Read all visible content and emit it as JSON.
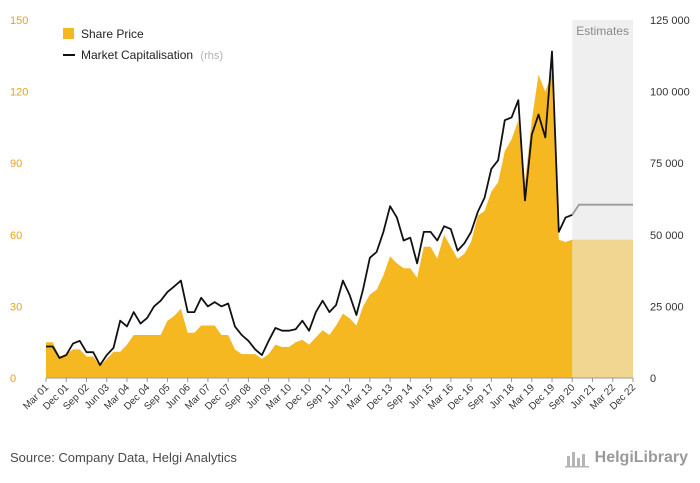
{
  "chart_data": {
    "type": "area",
    "legend": {
      "share_price": "Share Price",
      "market_cap": "Market Capitalisation",
      "market_cap_note": "(rhs)",
      "placement": "top-left"
    },
    "estimates_label": "Estimates",
    "colors": {
      "share_price": "#f5b820",
      "market_cap": "#111111",
      "estimate_line": "#9a9a9a",
      "estimate_band": "#efefef"
    },
    "y_left": {
      "min": 0,
      "max": 150,
      "ticks": [
        "0",
        "30",
        "60",
        "90",
        "120",
        "150"
      ]
    },
    "y_right": {
      "min": 0,
      "max": 125000,
      "ticks": [
        "0",
        "25 000",
        "50 000",
        "75 000",
        "100 000",
        "125 000"
      ]
    },
    "x_ticks": [
      "Mar 01",
      "Dec 01",
      "Sep 02",
      "Jun 03",
      "Mar 04",
      "Dec 04",
      "Sep 05",
      "Jun 06",
      "Mar 07",
      "Dec 07",
      "Sep 08",
      "Jun 09",
      "Mar 10",
      "Dec 10",
      "Sep 11",
      "Jun 12",
      "Mar 13",
      "Dec 13",
      "Sep 14",
      "Jun 15",
      "Mar 16",
      "Dec 16",
      "Sep 17",
      "Jun 18",
      "Mar 19",
      "Dec 19",
      "Sep 20",
      "Jun 21",
      "Mar 22",
      "Dec 22"
    ],
    "x_range_quarters": [
      0,
      87
    ],
    "estimates_from_quarter": 78,
    "series": [
      {
        "name": "Share Price",
        "axis": "left",
        "points": [
          [
            0,
            15
          ],
          [
            1,
            15
          ],
          [
            2,
            9
          ],
          [
            3,
            10
          ],
          [
            4,
            12
          ],
          [
            5,
            12
          ],
          [
            6,
            9
          ],
          [
            7,
            9
          ],
          [
            8,
            5
          ],
          [
            9,
            8
          ],
          [
            10,
            11
          ],
          [
            11,
            11
          ],
          [
            12,
            14
          ],
          [
            13,
            18
          ],
          [
            14,
            18
          ],
          [
            15,
            18
          ],
          [
            16,
            18
          ],
          [
            17,
            18
          ],
          [
            18,
            24
          ],
          [
            19,
            26
          ],
          [
            20,
            29
          ],
          [
            21,
            19
          ],
          [
            22,
            19
          ],
          [
            23,
            22
          ],
          [
            24,
            22
          ],
          [
            25,
            22
          ],
          [
            26,
            18
          ],
          [
            27,
            18
          ],
          [
            28,
            12
          ],
          [
            29,
            10
          ],
          [
            30,
            10
          ],
          [
            31,
            10
          ],
          [
            32,
            8
          ],
          [
            33,
            10
          ],
          [
            34,
            14
          ],
          [
            35,
            13
          ],
          [
            36,
            13
          ],
          [
            37,
            15
          ],
          [
            38,
            16
          ],
          [
            39,
            14
          ],
          [
            40,
            17
          ],
          [
            41,
            20
          ],
          [
            42,
            18
          ],
          [
            43,
            22
          ],
          [
            44,
            27
          ],
          [
            45,
            25
          ],
          [
            46,
            22
          ],
          [
            47,
            30
          ],
          [
            48,
            35
          ],
          [
            49,
            37
          ],
          [
            50,
            43
          ],
          [
            51,
            51
          ],
          [
            52,
            48
          ],
          [
            53,
            46
          ],
          [
            54,
            46
          ],
          [
            55,
            42
          ],
          [
            56,
            55
          ],
          [
            57,
            55
          ],
          [
            58,
            50
          ],
          [
            59,
            60
          ],
          [
            60,
            55
          ],
          [
            61,
            50
          ],
          [
            62,
            52
          ],
          [
            63,
            57
          ],
          [
            64,
            68
          ],
          [
            65,
            70
          ],
          [
            66,
            78
          ],
          [
            67,
            82
          ],
          [
            68,
            95
          ],
          [
            69,
            100
          ],
          [
            70,
            108
          ],
          [
            71,
            82
          ],
          [
            72,
            108
          ],
          [
            73,
            127
          ],
          [
            74,
            120
          ],
          [
            75,
            128
          ],
          [
            76,
            58
          ],
          [
            77,
            57
          ],
          [
            78,
            58
          ],
          [
            79,
            58
          ],
          [
            80,
            58
          ],
          [
            81,
            58
          ],
          [
            82,
            58
          ],
          [
            83,
            58
          ],
          [
            84,
            58
          ],
          [
            85,
            58
          ],
          [
            86,
            58
          ],
          [
            87,
            58
          ]
        ]
      },
      {
        "name": "Market Capitalisation",
        "axis": "right",
        "points": [
          [
            0,
            11000
          ],
          [
            1,
            11000
          ],
          [
            2,
            7000
          ],
          [
            3,
            8000
          ],
          [
            4,
            12000
          ],
          [
            5,
            13000
          ],
          [
            6,
            9000
          ],
          [
            7,
            9000
          ],
          [
            8,
            4500
          ],
          [
            9,
            8000
          ],
          [
            10,
            10500
          ],
          [
            11,
            20000
          ],
          [
            12,
            18000
          ],
          [
            13,
            23000
          ],
          [
            14,
            19000
          ],
          [
            15,
            21000
          ],
          [
            16,
            25000
          ],
          [
            17,
            27000
          ],
          [
            18,
            30000
          ],
          [
            19,
            32000
          ],
          [
            20,
            34000
          ],
          [
            21,
            23000
          ],
          [
            22,
            23000
          ],
          [
            23,
            28000
          ],
          [
            24,
            25000
          ],
          [
            25,
            26500
          ],
          [
            26,
            25000
          ],
          [
            27,
            26000
          ],
          [
            28,
            18000
          ],
          [
            29,
            15000
          ],
          [
            30,
            13000
          ],
          [
            31,
            10000
          ],
          [
            32,
            8000
          ],
          [
            33,
            13000
          ],
          [
            34,
            17500
          ],
          [
            35,
            16500
          ],
          [
            36,
            16500
          ],
          [
            37,
            17000
          ],
          [
            38,
            20000
          ],
          [
            39,
            16500
          ],
          [
            40,
            23000
          ],
          [
            41,
            27000
          ],
          [
            42,
            23000
          ],
          [
            43,
            25500
          ],
          [
            44,
            34000
          ],
          [
            45,
            29000
          ],
          [
            46,
            22000
          ],
          [
            47,
            31000
          ],
          [
            48,
            42000
          ],
          [
            49,
            44000
          ],
          [
            50,
            51000
          ],
          [
            51,
            60000
          ],
          [
            52,
            56000
          ],
          [
            53,
            48000
          ],
          [
            54,
            49000
          ],
          [
            55,
            40000
          ],
          [
            56,
            51000
          ],
          [
            57,
            51000
          ],
          [
            58,
            48000
          ],
          [
            59,
            53000
          ],
          [
            60,
            52000
          ],
          [
            61,
            44500
          ],
          [
            62,
            47000
          ],
          [
            63,
            51000
          ],
          [
            64,
            58000
          ],
          [
            65,
            63000
          ],
          [
            66,
            73000
          ],
          [
            67,
            76000
          ],
          [
            68,
            90000
          ],
          [
            69,
            91000
          ],
          [
            70,
            97000
          ],
          [
            71,
            62000
          ],
          [
            72,
            85000
          ],
          [
            73,
            92000
          ],
          [
            74,
            84000
          ],
          [
            75,
            114000
          ],
          [
            76,
            51000
          ],
          [
            77,
            56000
          ],
          [
            78,
            57000
          ]
        ]
      },
      {
        "name": "Market Capitalisation (estimate)",
        "axis": "right",
        "points": [
          [
            78,
            57000
          ],
          [
            79,
            60500
          ],
          [
            80,
            60500
          ],
          [
            81,
            60500
          ],
          [
            82,
            60500
          ],
          [
            83,
            60500
          ],
          [
            84,
            60500
          ],
          [
            85,
            60500
          ],
          [
            86,
            60500
          ],
          [
            87,
            60500
          ]
        ]
      }
    ]
  },
  "footer": {
    "source": "Source: Company Data, Helgi Analytics",
    "brand": "HelgiLibrary"
  }
}
